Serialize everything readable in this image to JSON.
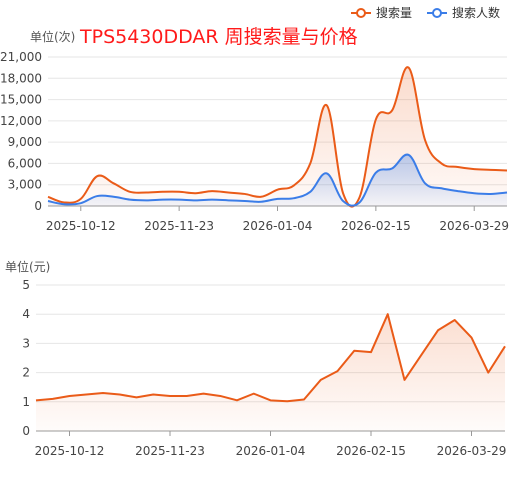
{
  "title": "TPS5430DDAR 周搜索量与价格",
  "chart_data": [
    {
      "type": "area",
      "unit_label": "单位(次)",
      "x_ticks": [
        "2025-10-12",
        "2025-11-23",
        "2026-01-04",
        "2026-02-15",
        "2026-03-29"
      ],
      "y_ticks": [
        "0",
        "3,000",
        "6,000",
        "9,000",
        "12,000",
        "15,000",
        "18,000",
        "21,000"
      ],
      "ylim": [
        0,
        21000
      ],
      "legend_placement": "top-right",
      "grid": true,
      "series": [
        {
          "name": "搜索量",
          "color": "#ea5b18",
          "x": [
            "2025-09-28",
            "2025-10-05",
            "2025-10-12",
            "2025-10-19",
            "2025-10-26",
            "2025-11-02",
            "2025-11-09",
            "2025-11-16",
            "2025-11-23",
            "2025-11-30",
            "2025-12-07",
            "2025-12-14",
            "2025-12-21",
            "2025-12-28",
            "2026-01-04",
            "2026-01-11",
            "2026-01-18",
            "2026-01-25",
            "2026-02-01",
            "2026-02-08",
            "2026-02-15",
            "2026-02-22",
            "2026-03-01",
            "2026-03-08",
            "2026-03-15",
            "2026-03-22",
            "2026-03-29",
            "2026-04-05",
            "2026-04-12"
          ],
          "values": [
            1300,
            500,
            1000,
            4200,
            3200,
            2000,
            1900,
            2000,
            2000,
            1800,
            2100,
            1900,
            1700,
            1300,
            2300,
            2900,
            6000,
            14200,
            1800,
            1200,
            12200,
            13500,
            19500,
            9300,
            6000,
            5500,
            5200,
            5100,
            5000
          ]
        },
        {
          "name": "搜索人数",
          "color": "#3b7de8",
          "x": [
            "2025-09-28",
            "2025-10-05",
            "2025-10-12",
            "2025-10-19",
            "2025-10-26",
            "2025-11-02",
            "2025-11-09",
            "2025-11-16",
            "2025-11-23",
            "2025-11-30",
            "2025-12-07",
            "2025-12-14",
            "2025-12-21",
            "2025-12-28",
            "2026-01-04",
            "2026-01-11",
            "2026-01-18",
            "2026-01-25",
            "2026-02-01",
            "2026-02-08",
            "2026-02-15",
            "2026-02-22",
            "2026-03-01",
            "2026-03-08",
            "2026-03-15",
            "2026-03-22",
            "2026-03-29",
            "2026-04-05",
            "2026-04-12"
          ],
          "values": [
            700,
            250,
            400,
            1400,
            1300,
            900,
            800,
            900,
            900,
            800,
            900,
            800,
            700,
            600,
            1000,
            1100,
            2000,
            4600,
            700,
            500,
            4700,
            5300,
            7200,
            3200,
            2500,
            2100,
            1800,
            1700,
            1900
          ]
        }
      ]
    },
    {
      "type": "area",
      "unit_label": "单位(元)",
      "x_ticks": [
        "2025-10-12",
        "2025-11-23",
        "2026-01-04",
        "2026-02-15",
        "2026-03-29"
      ],
      "y_ticks": [
        "0",
        "1",
        "2",
        "3",
        "4",
        "5"
      ],
      "ylim": [
        0,
        5
      ],
      "grid": true,
      "series": [
        {
          "name": "价格",
          "color": "#ea5b18",
          "x": [
            "2025-09-28",
            "2025-10-05",
            "2025-10-12",
            "2025-10-19",
            "2025-10-26",
            "2025-11-02",
            "2025-11-09",
            "2025-11-16",
            "2025-11-23",
            "2025-11-30",
            "2025-12-07",
            "2025-12-14",
            "2025-12-21",
            "2025-12-28",
            "2026-01-04",
            "2026-01-11",
            "2026-01-18",
            "2026-01-25",
            "2026-02-01",
            "2026-02-08",
            "2026-02-15",
            "2026-02-22",
            "2026-03-01",
            "2026-03-08",
            "2026-03-15",
            "2026-03-22",
            "2026-03-29",
            "2026-04-05",
            "2026-04-12"
          ],
          "values": [
            1.05,
            1.1,
            1.2,
            1.25,
            1.3,
            1.25,
            1.15,
            1.25,
            1.2,
            1.2,
            1.28,
            1.2,
            1.05,
            1.28,
            1.05,
            1.02,
            1.08,
            1.75,
            2.05,
            2.75,
            2.7,
            4.0,
            1.75,
            2.6,
            3.45,
            3.8,
            3.2,
            2.0,
            2.9
          ]
        }
      ]
    }
  ]
}
